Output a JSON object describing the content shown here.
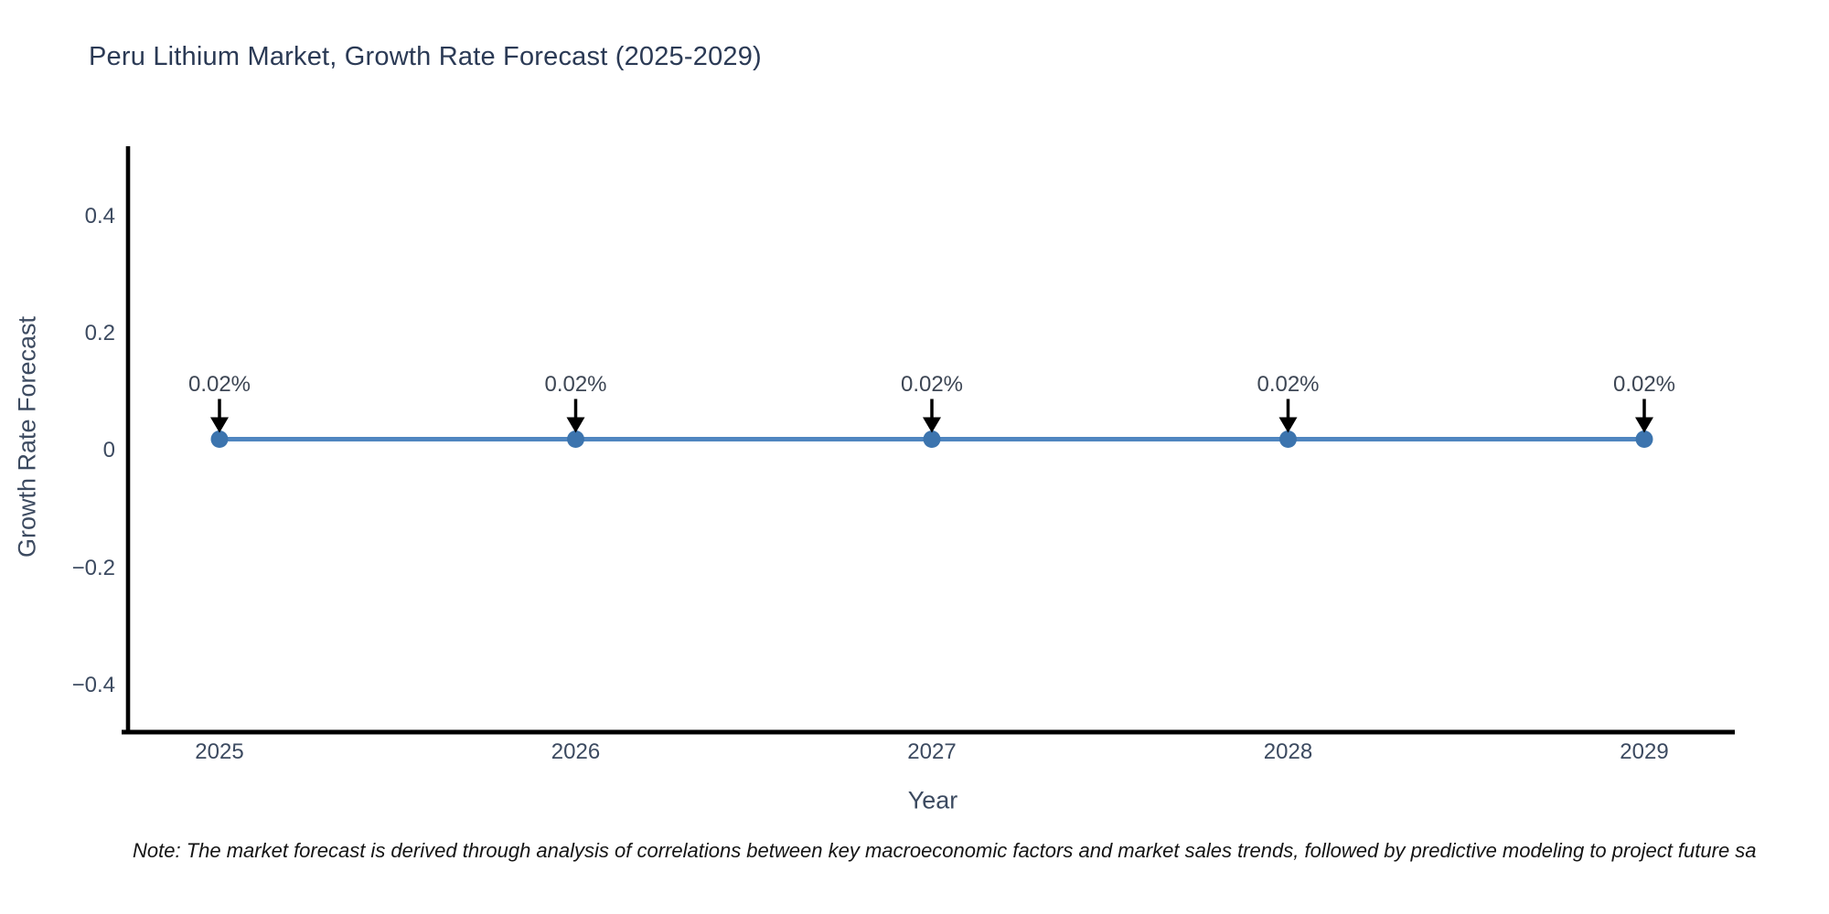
{
  "page": {
    "background": "#ffffff"
  },
  "note": {
    "text": "Note: The market forecast is derived through analysis of correlations between key macroeconomic factors and market sales trends, followed by predictive modeling to project future sa"
  },
  "chart_data": {
    "type": "line",
    "title": "Peru Lithium Market, Growth Rate Forecast (2025-2029)",
    "xlabel": "Year",
    "ylabel": "Growth Rate Forecast",
    "x": [
      2025,
      2026,
      2027,
      2028,
      2029
    ],
    "series": [
      {
        "name": "Growth Rate Forecast",
        "values": [
          0.02,
          0.02,
          0.02,
          0.02,
          0.02
        ]
      }
    ],
    "point_annotations": [
      "0.02%",
      "0.02%",
      "0.02%",
      "0.02%",
      "0.02%"
    ],
    "yticks": {
      "values": [
        0.4,
        0.2,
        0,
        -0.2,
        -0.4
      ],
      "labels": [
        "0.4",
        "0.2",
        "0",
        "−0.2",
        "−0.4"
      ]
    },
    "ylim": [
      -0.48,
      0.52
    ],
    "grid": false,
    "legend": false,
    "colors": {
      "line": "#4f86c0",
      "marker": "#3c74ae",
      "axis": "#000000",
      "arrow": "#000000",
      "tick_label": "#3c4a60",
      "title": "#2b3a55"
    }
  }
}
